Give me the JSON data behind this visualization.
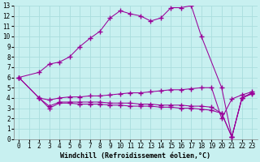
{
  "xlabel": "Windchill (Refroidissement éolien,°C)",
  "bg_color": "#c8f0f0",
  "grid_color": "#aadddd",
  "line_color": "#990099",
  "xlim": [
    -0.5,
    23.5
  ],
  "ylim": [
    0,
    13
  ],
  "xticks": [
    0,
    1,
    2,
    3,
    4,
    5,
    6,
    7,
    8,
    9,
    10,
    11,
    12,
    13,
    14,
    15,
    16,
    17,
    18,
    19,
    20,
    21,
    22,
    23
  ],
  "yticks": [
    0,
    1,
    2,
    3,
    4,
    5,
    6,
    7,
    8,
    9,
    10,
    11,
    12,
    13
  ],
  "line1_x": [
    0,
    2,
    3,
    4,
    5,
    6,
    7,
    8,
    9,
    10,
    11,
    12,
    13,
    14,
    15,
    16,
    17,
    18,
    20,
    21,
    22,
    23
  ],
  "line1_y": [
    6.0,
    6.5,
    7.3,
    7.5,
    8.0,
    9.0,
    9.8,
    10.5,
    11.8,
    12.5,
    12.2,
    12.0,
    11.5,
    11.8,
    12.8,
    12.8,
    13.0,
    10.0,
    5.0,
    0.2,
    4.0,
    4.5
  ],
  "line2_x": [
    0,
    2,
    3,
    4,
    5,
    6,
    7,
    8,
    9,
    10,
    11,
    12,
    13,
    14,
    15,
    16,
    17,
    18,
    19,
    20,
    21,
    22,
    23
  ],
  "line2_y": [
    6.0,
    4.0,
    3.8,
    4.0,
    4.1,
    4.1,
    4.2,
    4.2,
    4.3,
    4.4,
    4.5,
    4.5,
    4.6,
    4.7,
    4.8,
    4.8,
    4.9,
    5.0,
    5.0,
    2.0,
    3.9,
    4.3,
    4.6
  ],
  "line3_x": [
    0,
    2,
    3,
    4,
    5,
    6,
    7,
    8,
    9,
    10,
    11,
    12,
    13,
    14,
    15,
    16,
    17,
    18,
    19,
    20,
    21,
    22,
    23
  ],
  "line3_y": [
    6.0,
    4.0,
    3.2,
    3.6,
    3.6,
    3.6,
    3.6,
    3.6,
    3.5,
    3.5,
    3.5,
    3.4,
    3.4,
    3.3,
    3.3,
    3.3,
    3.2,
    3.2,
    3.1,
    2.5,
    0.2,
    4.0,
    4.4
  ],
  "line4_x": [
    2,
    3,
    4,
    5,
    6,
    7,
    8,
    9,
    10,
    11,
    12,
    13,
    14,
    15,
    16,
    17,
    18,
    19,
    20,
    21,
    22,
    23
  ],
  "line4_y": [
    4.0,
    3.0,
    3.5,
    3.5,
    3.4,
    3.4,
    3.4,
    3.3,
    3.3,
    3.2,
    3.2,
    3.2,
    3.1,
    3.1,
    3.0,
    3.0,
    2.9,
    2.8,
    2.5,
    0.2,
    4.0,
    4.5
  ],
  "tick_fontsize": 5.5,
  "label_fontsize": 6.0
}
